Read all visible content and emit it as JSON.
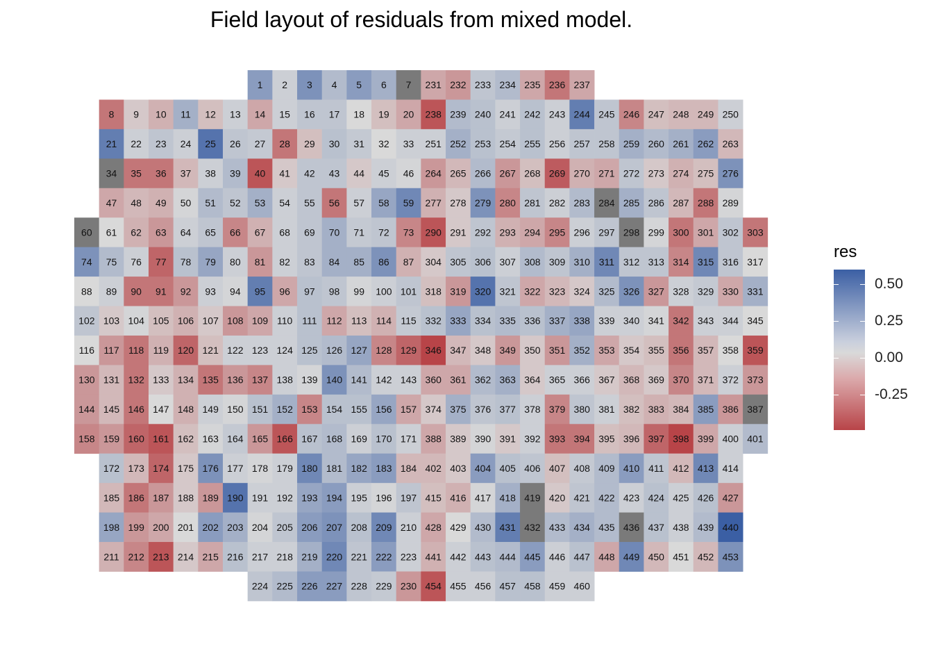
{
  "title": "Field layout of residuals from mixed model.",
  "chart_data": {
    "type": "heatmap",
    "title": "Field layout of residuals from mixed model.",
    "value_name": "res",
    "color_scale": {
      "low": "#b84448",
      "mid": "#d9d9d9",
      "high": "#3b5fa4",
      "na": "#7a7a7a",
      "range": [
        -0.45,
        0.6
      ]
    },
    "legend": {
      "title": "res",
      "placement": "right",
      "ticks": [
        "0.50",
        "0.25",
        "0.00",
        "-0.25"
      ],
      "tick_values": [
        0.5,
        0.25,
        0.0,
        -0.25
      ]
    },
    "columns": [
      1,
      2,
      3,
      4,
      5,
      6,
      7,
      8,
      9,
      10,
      11,
      12,
      13,
      14,
      15,
      16,
      17,
      18,
      19,
      20,
      21,
      22,
      23,
      24,
      25,
      26,
      27,
      28,
      29,
      30
    ],
    "rows": [
      {
        "start": 8,
        "ids": [
          1,
          2,
          3,
          4,
          5,
          6,
          7,
          231,
          232,
          233,
          234,
          235,
          236,
          237
        ],
        "res": [
          0.3,
          0.05,
          0.35,
          0.15,
          0.3,
          0.2,
          null,
          -0.15,
          -0.2,
          0.1,
          0.15,
          -0.15,
          -0.3,
          -0.15
        ]
      },
      {
        "start": 2,
        "ids": [
          8,
          9,
          10,
          11,
          12,
          13,
          14,
          15,
          16,
          17,
          18,
          19,
          20,
          238,
          239,
          240,
          241,
          242,
          243,
          244,
          245,
          246,
          247,
          248,
          249,
          250
        ],
        "res": [
          -0.3,
          -0.05,
          -0.12,
          0.2,
          -0.08,
          0.05,
          -0.15,
          0.05,
          0.1,
          0.1,
          0.0,
          -0.08,
          -0.15,
          -0.4,
          0.15,
          0.12,
          0.05,
          0.12,
          0.05,
          0.45,
          0.1,
          -0.25,
          -0.08,
          -0.1,
          -0.1,
          0.05
        ]
      },
      {
        "start": 2,
        "ids": [
          21,
          22,
          23,
          24,
          25,
          26,
          27,
          28,
          29,
          30,
          31,
          32,
          33,
          251,
          252,
          253,
          254,
          255,
          256,
          257,
          258,
          259,
          260,
          261,
          262,
          263
        ],
        "res": [
          0.45,
          0.05,
          0.1,
          0.05,
          0.5,
          0.1,
          0.08,
          -0.3,
          -0.08,
          0.12,
          0.08,
          0.0,
          0.05,
          0.05,
          0.2,
          0.12,
          0.08,
          0.12,
          0.05,
          0.1,
          0.1,
          0.2,
          0.15,
          0.2,
          0.3,
          -0.1
        ]
      },
      {
        "start": 2,
        "ids": [
          34,
          35,
          36,
          37,
          38,
          39,
          40,
          41,
          42,
          43,
          44,
          45,
          46,
          264,
          265,
          266,
          267,
          268,
          269,
          270,
          271,
          272,
          273,
          274,
          275,
          276
        ],
        "res": [
          null,
          -0.3,
          -0.3,
          -0.1,
          0.05,
          0.15,
          -0.4,
          -0.05,
          0.1,
          0.1,
          -0.05,
          0.05,
          0.02,
          -0.2,
          -0.1,
          0.15,
          -0.2,
          -0.08,
          -0.38,
          -0.12,
          -0.15,
          0.1,
          -0.05,
          -0.12,
          -0.08,
          0.35
        ]
      },
      {
        "start": 2,
        "ids": [
          47,
          48,
          49,
          50,
          51,
          52,
          53,
          54,
          55,
          56,
          57,
          58,
          59,
          277,
          278,
          279,
          280,
          281,
          282,
          283,
          284,
          285,
          286,
          287,
          288,
          289
        ],
        "res": [
          -0.15,
          -0.1,
          -0.12,
          0.02,
          0.15,
          0.1,
          0.2,
          0.05,
          0.1,
          -0.3,
          0.05,
          0.25,
          0.4,
          -0.12,
          -0.05,
          0.35,
          -0.25,
          0.1,
          0.05,
          0.15,
          null,
          0.2,
          0.1,
          -0.1,
          -0.3,
          0.02
        ]
      },
      {
        "start": 1,
        "ids": [
          60,
          61,
          62,
          63,
          64,
          65,
          66,
          67,
          68,
          69,
          70,
          71,
          72,
          73,
          290,
          291,
          292,
          293,
          294,
          295,
          296,
          297,
          298,
          299,
          300,
          301,
          302,
          303
        ],
        "res": [
          null,
          0.0,
          -0.12,
          -0.2,
          0.05,
          0.1,
          -0.25,
          -0.12,
          0.05,
          0.1,
          0.2,
          0.08,
          0.1,
          -0.25,
          -0.4,
          -0.05,
          0.1,
          -0.12,
          -0.15,
          -0.25,
          0.05,
          0.1,
          null,
          0.02,
          -0.3,
          -0.15,
          0.1,
          -0.3
        ]
      },
      {
        "start": 1,
        "ids": [
          74,
          75,
          76,
          77,
          78,
          79,
          80,
          81,
          82,
          83,
          84,
          85,
          86,
          87,
          304,
          305,
          306,
          307,
          308,
          309,
          310,
          311,
          312,
          313,
          314,
          315,
          316,
          317
        ],
        "res": [
          0.35,
          0.15,
          0.05,
          -0.35,
          0.12,
          0.25,
          0.05,
          -0.2,
          0.05,
          0.1,
          0.2,
          0.2,
          0.35,
          -0.12,
          -0.05,
          0.1,
          0.12,
          0.05,
          0.15,
          0.1,
          0.2,
          0.4,
          0.1,
          0.1,
          -0.25,
          0.4,
          0.1,
          0.0
        ]
      },
      {
        "start": 1,
        "ids": [
          88,
          89,
          90,
          91,
          92,
          93,
          94,
          95,
          96,
          97,
          98,
          99,
          100,
          101,
          318,
          319,
          320,
          321,
          322,
          323,
          324,
          325,
          326,
          327,
          328,
          329,
          330,
          331
        ],
        "res": [
          0.0,
          0.05,
          -0.3,
          -0.3,
          -0.2,
          0.05,
          0.02,
          0.45,
          -0.15,
          0.12,
          0.1,
          0.02,
          0.05,
          0.1,
          -0.08,
          -0.2,
          0.5,
          0.1,
          -0.15,
          -0.1,
          -0.05,
          0.15,
          0.35,
          -0.2,
          0.05,
          0.08,
          -0.15,
          0.2
        ]
      },
      {
        "start": 1,
        "ids": [
          102,
          103,
          104,
          105,
          106,
          107,
          108,
          109,
          110,
          111,
          112,
          113,
          114,
          115,
          332,
          333,
          334,
          335,
          336,
          337,
          338,
          339,
          340,
          341,
          342,
          343,
          344,
          345
        ],
        "res": [
          0.1,
          -0.05,
          0.02,
          -0.08,
          -0.12,
          -0.05,
          -0.2,
          -0.15,
          0.05,
          0.12,
          -0.15,
          -0.08,
          -0.12,
          0.08,
          0.12,
          0.25,
          0.12,
          0.15,
          0.12,
          0.2,
          0.25,
          0.05,
          0.05,
          0.02,
          -0.3,
          0.05,
          0.05,
          0.0
        ]
      },
      {
        "start": 1,
        "ids": [
          116,
          117,
          118,
          119,
          120,
          121,
          122,
          123,
          124,
          125,
          126,
          127,
          128,
          129,
          346,
          347,
          348,
          349,
          350,
          351,
          352,
          353,
          354,
          355,
          356,
          357,
          358,
          359
        ],
        "res": [
          0.0,
          -0.2,
          -0.3,
          -0.12,
          -0.35,
          -0.08,
          0.05,
          0.05,
          0.05,
          0.12,
          0.15,
          0.25,
          -0.25,
          -0.35,
          -0.45,
          -0.1,
          -0.05,
          -0.2,
          -0.05,
          -0.2,
          0.2,
          -0.15,
          -0.05,
          -0.08,
          -0.3,
          -0.1,
          0.0,
          -0.4
        ]
      },
      {
        "start": 1,
        "ids": [
          130,
          131,
          132,
          133,
          134,
          135,
          136,
          137,
          138,
          139,
          140,
          141,
          142,
          143,
          360,
          361,
          362,
          363,
          364,
          365,
          366,
          367,
          368,
          369,
          370,
          371,
          372,
          373
        ],
        "res": [
          -0.2,
          -0.1,
          -0.3,
          -0.05,
          -0.12,
          -0.3,
          -0.2,
          -0.25,
          0.05,
          0.02,
          0.35,
          0.15,
          0.05,
          0.05,
          -0.15,
          -0.15,
          0.15,
          0.2,
          -0.05,
          0.05,
          0.05,
          -0.05,
          -0.1,
          -0.05,
          -0.25,
          -0.1,
          0.05,
          -0.2
        ]
      },
      {
        "start": 1,
        "ids": [
          144,
          145,
          146,
          147,
          148,
          149,
          150,
          151,
          152,
          153,
          154,
          155,
          156,
          157,
          374,
          375,
          376,
          377,
          378,
          379,
          380,
          381,
          382,
          383,
          384,
          385,
          386,
          387
        ],
        "res": [
          -0.2,
          -0.1,
          -0.3,
          0.0,
          -0.12,
          0.05,
          0.02,
          0.12,
          0.2,
          -0.25,
          0.12,
          0.12,
          0.25,
          -0.15,
          -0.05,
          0.2,
          0.1,
          0.12,
          0.05,
          -0.25,
          0.1,
          0.05,
          -0.08,
          -0.12,
          -0.1,
          0.3,
          -0.2,
          null
        ]
      },
      {
        "start": 1,
        "ids": [
          158,
          159,
          160,
          161,
          162,
          163,
          164,
          165,
          166,
          167,
          168,
          169,
          170,
          171,
          388,
          389,
          390,
          391,
          392,
          393,
          394,
          395,
          396,
          397,
          398,
          399,
          400,
          401
        ],
        "res": [
          -0.25,
          -0.2,
          -0.35,
          -0.4,
          -0.08,
          0.02,
          0.08,
          -0.2,
          -0.4,
          0.12,
          0.15,
          0.05,
          0.12,
          0.05,
          -0.15,
          -0.05,
          0.02,
          -0.05,
          0.05,
          -0.3,
          -0.3,
          -0.08,
          -0.1,
          -0.35,
          -0.45,
          -0.15,
          0.05,
          0.15
        ]
      },
      {
        "start": 2,
        "ids": [
          172,
          173,
          174,
          175,
          176,
          177,
          178,
          179,
          180,
          181,
          182,
          183,
          184,
          402,
          403,
          404,
          405,
          406,
          407,
          408,
          409,
          410,
          411,
          412,
          413,
          414
        ],
        "res": [
          0.12,
          -0.1,
          -0.35,
          -0.05,
          0.35,
          0.05,
          0.02,
          0.05,
          0.4,
          0.15,
          0.25,
          0.3,
          -0.1,
          -0.1,
          -0.05,
          0.3,
          0.12,
          0.1,
          -0.08,
          0.08,
          0.15,
          0.3,
          0.1,
          -0.1,
          0.4,
          0.05
        ]
      },
      {
        "start": 2,
        "ids": [
          185,
          186,
          187,
          188,
          189,
          190,
          191,
          192,
          193,
          194,
          195,
          196,
          197,
          415,
          416,
          417,
          418,
          419,
          420,
          421,
          422,
          423,
          424,
          425,
          426,
          427
        ],
        "res": [
          -0.1,
          -0.3,
          -0.2,
          -0.05,
          -0.2,
          0.5,
          0.05,
          0.05,
          0.25,
          0.3,
          0.05,
          0.02,
          0.1,
          -0.08,
          -0.12,
          0.02,
          0.2,
          null,
          -0.05,
          0.1,
          0.15,
          0.05,
          0.12,
          0.05,
          0.12,
          -0.2
        ]
      },
      {
        "start": 2,
        "ids": [
          198,
          199,
          200,
          201,
          202,
          203,
          204,
          205,
          206,
          207,
          208,
          209,
          210,
          428,
          429,
          430,
          431,
          432,
          433,
          434,
          435,
          436,
          437,
          438,
          439,
          440
        ],
        "res": [
          0.25,
          -0.2,
          -0.15,
          0.0,
          0.3,
          0.2,
          0.02,
          0.1,
          0.3,
          0.35,
          0.12,
          0.4,
          0.05,
          -0.15,
          0.0,
          0.15,
          0.45,
          null,
          0.15,
          0.2,
          0.15,
          null,
          0.12,
          0.05,
          0.15,
          0.6
        ]
      },
      {
        "start": 2,
        "ids": [
          211,
          212,
          213,
          214,
          215,
          216,
          217,
          218,
          219,
          220,
          221,
          222,
          223,
          441,
          442,
          443,
          444,
          445,
          446,
          447,
          448,
          449,
          450,
          451,
          452,
          453
        ],
        "res": [
          -0.12,
          -0.25,
          -0.4,
          -0.05,
          -0.15,
          0.12,
          0.05,
          0.05,
          0.2,
          0.4,
          0.1,
          0.3,
          0.05,
          -0.12,
          0.05,
          0.12,
          0.15,
          0.3,
          0.05,
          0.12,
          -0.15,
          0.4,
          -0.1,
          0.0,
          -0.1,
          0.35
        ]
      },
      {
        "start": 8,
        "ids": [
          224,
          225,
          226,
          227,
          228,
          229,
          230,
          454,
          455,
          456,
          457,
          458,
          459,
          460
        ],
        "res": [
          0.1,
          0.15,
          0.3,
          0.3,
          0.1,
          0.08,
          -0.2,
          -0.4,
          0.05,
          0.05,
          0.12,
          0.12,
          0.05,
          0.05
        ]
      }
    ]
  }
}
